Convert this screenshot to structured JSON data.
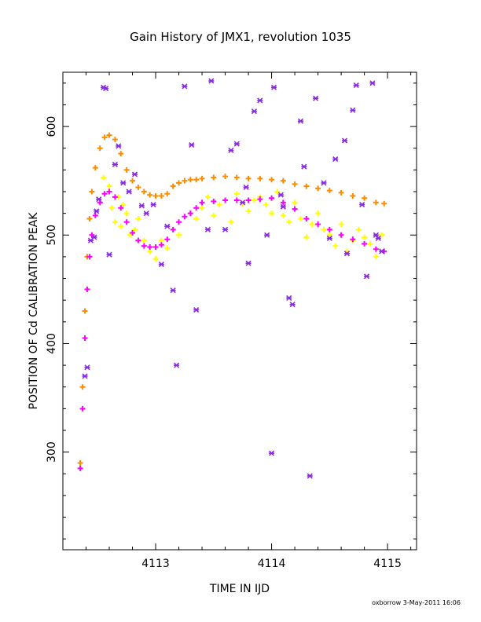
{
  "chart_data": {
    "type": "scatter",
    "title": "Gain History of JMX1, revolution 1035",
    "xlabel": "TIME IN IJD",
    "ylabel": "POSITION OF Cd CALIBRATION PEAK",
    "footer": "oxborrow  3-May-2011 16:06",
    "xlim": [
      4112.2,
      4115.25
    ],
    "ylim": [
      210,
      650
    ],
    "x_ticks": [
      4113,
      4114,
      4115
    ],
    "y_ticks": [
      300,
      400,
      500,
      600
    ],
    "grid": false,
    "colors": {
      "orange": "#ff8c00",
      "yellow": "#ffff00",
      "magenta": "#ff00ff",
      "purple": "#8a2be2"
    },
    "series": [
      {
        "marker": "plus",
        "color": "#ff8c00",
        "x": [
          4112.35,
          4112.37,
          4112.39,
          4112.41,
          4112.43,
          4112.45,
          4112.48,
          4112.52,
          4112.56,
          4112.6,
          4112.65,
          4112.7,
          4112.75,
          4112.8,
          4112.85,
          4112.9,
          4112.95,
          4113.0,
          4113.05,
          4113.1,
          4113.15,
          4113.2,
          4113.25,
          4113.3,
          4113.35,
          4113.4,
          4113.5,
          4113.6,
          4113.7,
          4113.8,
          4113.9,
          4114.0,
          4114.1,
          4114.2,
          4114.3,
          4114.4,
          4114.5,
          4114.6,
          4114.7,
          4114.8,
          4114.9,
          4114.97
        ],
        "y": [
          290,
          360,
          430,
          480,
          515,
          540,
          562,
          580,
          590,
          592,
          588,
          575,
          560,
          550,
          544,
          540,
          537,
          536,
          536,
          538,
          545,
          548,
          550,
          551,
          551,
          552,
          553,
          554,
          553,
          552,
          552,
          551,
          550,
          547,
          545,
          543,
          541,
          539,
          536,
          534,
          530,
          529
        ]
      },
      {
        "marker": "plus",
        "color": "#ff00ff",
        "x": [
          4112.35,
          4112.37,
          4112.39,
          4112.41,
          4112.43,
          4112.45,
          4112.48,
          4112.52,
          4112.56,
          4112.6,
          4112.65,
          4112.7,
          4112.75,
          4112.8,
          4112.85,
          4112.9,
          4112.95,
          4113.0,
          4113.05,
          4113.1,
          4113.15,
          4113.2,
          4113.25,
          4113.3,
          4113.35,
          4113.4,
          4113.5,
          4113.6,
          4113.7,
          4113.8,
          4113.9,
          4114.0,
          4114.1,
          4114.2,
          4114.3,
          4114.4,
          4114.5,
          4114.6,
          4114.7,
          4114.8,
          4114.9,
          4114.97
        ],
        "y": [
          285,
          340,
          405,
          450,
          480,
          500,
          518,
          530,
          538,
          540,
          535,
          525,
          512,
          502,
          495,
          490,
          489,
          489,
          491,
          496,
          505,
          512,
          517,
          520,
          525,
          530,
          531,
          532,
          532,
          532,
          533,
          534,
          530,
          524,
          515,
          510,
          505,
          500,
          496,
          492,
          487,
          485
        ]
      },
      {
        "marker": "plus",
        "color": "#ffff00",
        "x": [
          4112.55,
          4112.6,
          4112.62,
          4112.65,
          4112.68,
          4112.7,
          4112.72,
          4112.75,
          4112.78,
          4112.82,
          4112.85,
          4112.9,
          4112.95,
          4113.0,
          4113.05,
          4113.1,
          4113.15,
          4113.2,
          4113.3,
          4113.35,
          4113.4,
          4113.45,
          4113.5,
          4113.55,
          4113.6,
          4113.65,
          4113.7,
          4113.75,
          4113.8,
          4113.85,
          4113.9,
          4113.95,
          4114.0,
          4114.05,
          4114.1,
          4114.15,
          4114.2,
          4114.25,
          4114.3,
          4114.35,
          4114.4,
          4114.45,
          4114.5,
          4114.55,
          4114.6,
          4114.65,
          4114.7,
          4114.75,
          4114.8,
          4114.85,
          4114.9,
          4114.95
        ],
        "y": [
          553,
          545,
          525,
          512,
          535,
          508,
          528,
          520,
          500,
          505,
          515,
          495,
          485,
          478,
          495,
          488,
          505,
          500,
          520,
          515,
          525,
          535,
          518,
          528,
          532,
          512,
          538,
          528,
          522,
          532,
          535,
          528,
          520,
          540,
          518,
          512,
          530,
          515,
          498,
          510,
          520,
          505,
          500,
          490,
          510,
          485,
          495,
          505,
          498,
          492,
          480,
          500
        ]
      },
      {
        "marker": "star",
        "color": "#8a2be2",
        "x": [
          4112.39,
          4112.41,
          4112.44,
          4112.47,
          4112.49,
          4112.51,
          4112.55,
          4112.57,
          4112.6,
          4112.65,
          4112.68,
          4112.72,
          4112.77,
          4112.82,
          4112.88,
          4112.92,
          4112.98,
          4113.05,
          4113.1,
          4113.15,
          4113.18,
          4113.25,
          4113.31,
          4113.35,
          4113.45,
          4113.48,
          4113.6,
          4113.65,
          4113.7,
          4113.75,
          4113.78,
          4113.8,
          4113.85,
          4113.9,
          4113.96,
          4114.0,
          4114.02,
          4114.08,
          4114.1,
          4114.15,
          4114.18,
          4114.25,
          4114.28,
          4114.33,
          4114.38,
          4114.45,
          4114.5,
          4114.55,
          4114.63,
          4114.65,
          4114.7,
          4114.73,
          4114.78,
          4114.82,
          4114.87,
          4114.9,
          4114.92,
          4114.95
        ],
        "y": [
          370,
          378,
          495,
          498,
          522,
          533,
          636,
          635,
          482,
          565,
          582,
          548,
          540,
          556,
          527,
          520,
          528,
          473,
          508,
          449,
          380,
          637,
          583,
          431,
          505,
          642,
          505,
          578,
          584,
          530,
          544,
          474,
          614,
          624,
          500,
          299,
          636,
          537,
          526,
          442,
          436,
          605,
          563,
          278,
          626,
          548,
          497,
          570,
          587,
          483,
          615,
          638,
          528,
          462,
          640,
          500,
          497,
          485
        ]
      }
    ]
  }
}
